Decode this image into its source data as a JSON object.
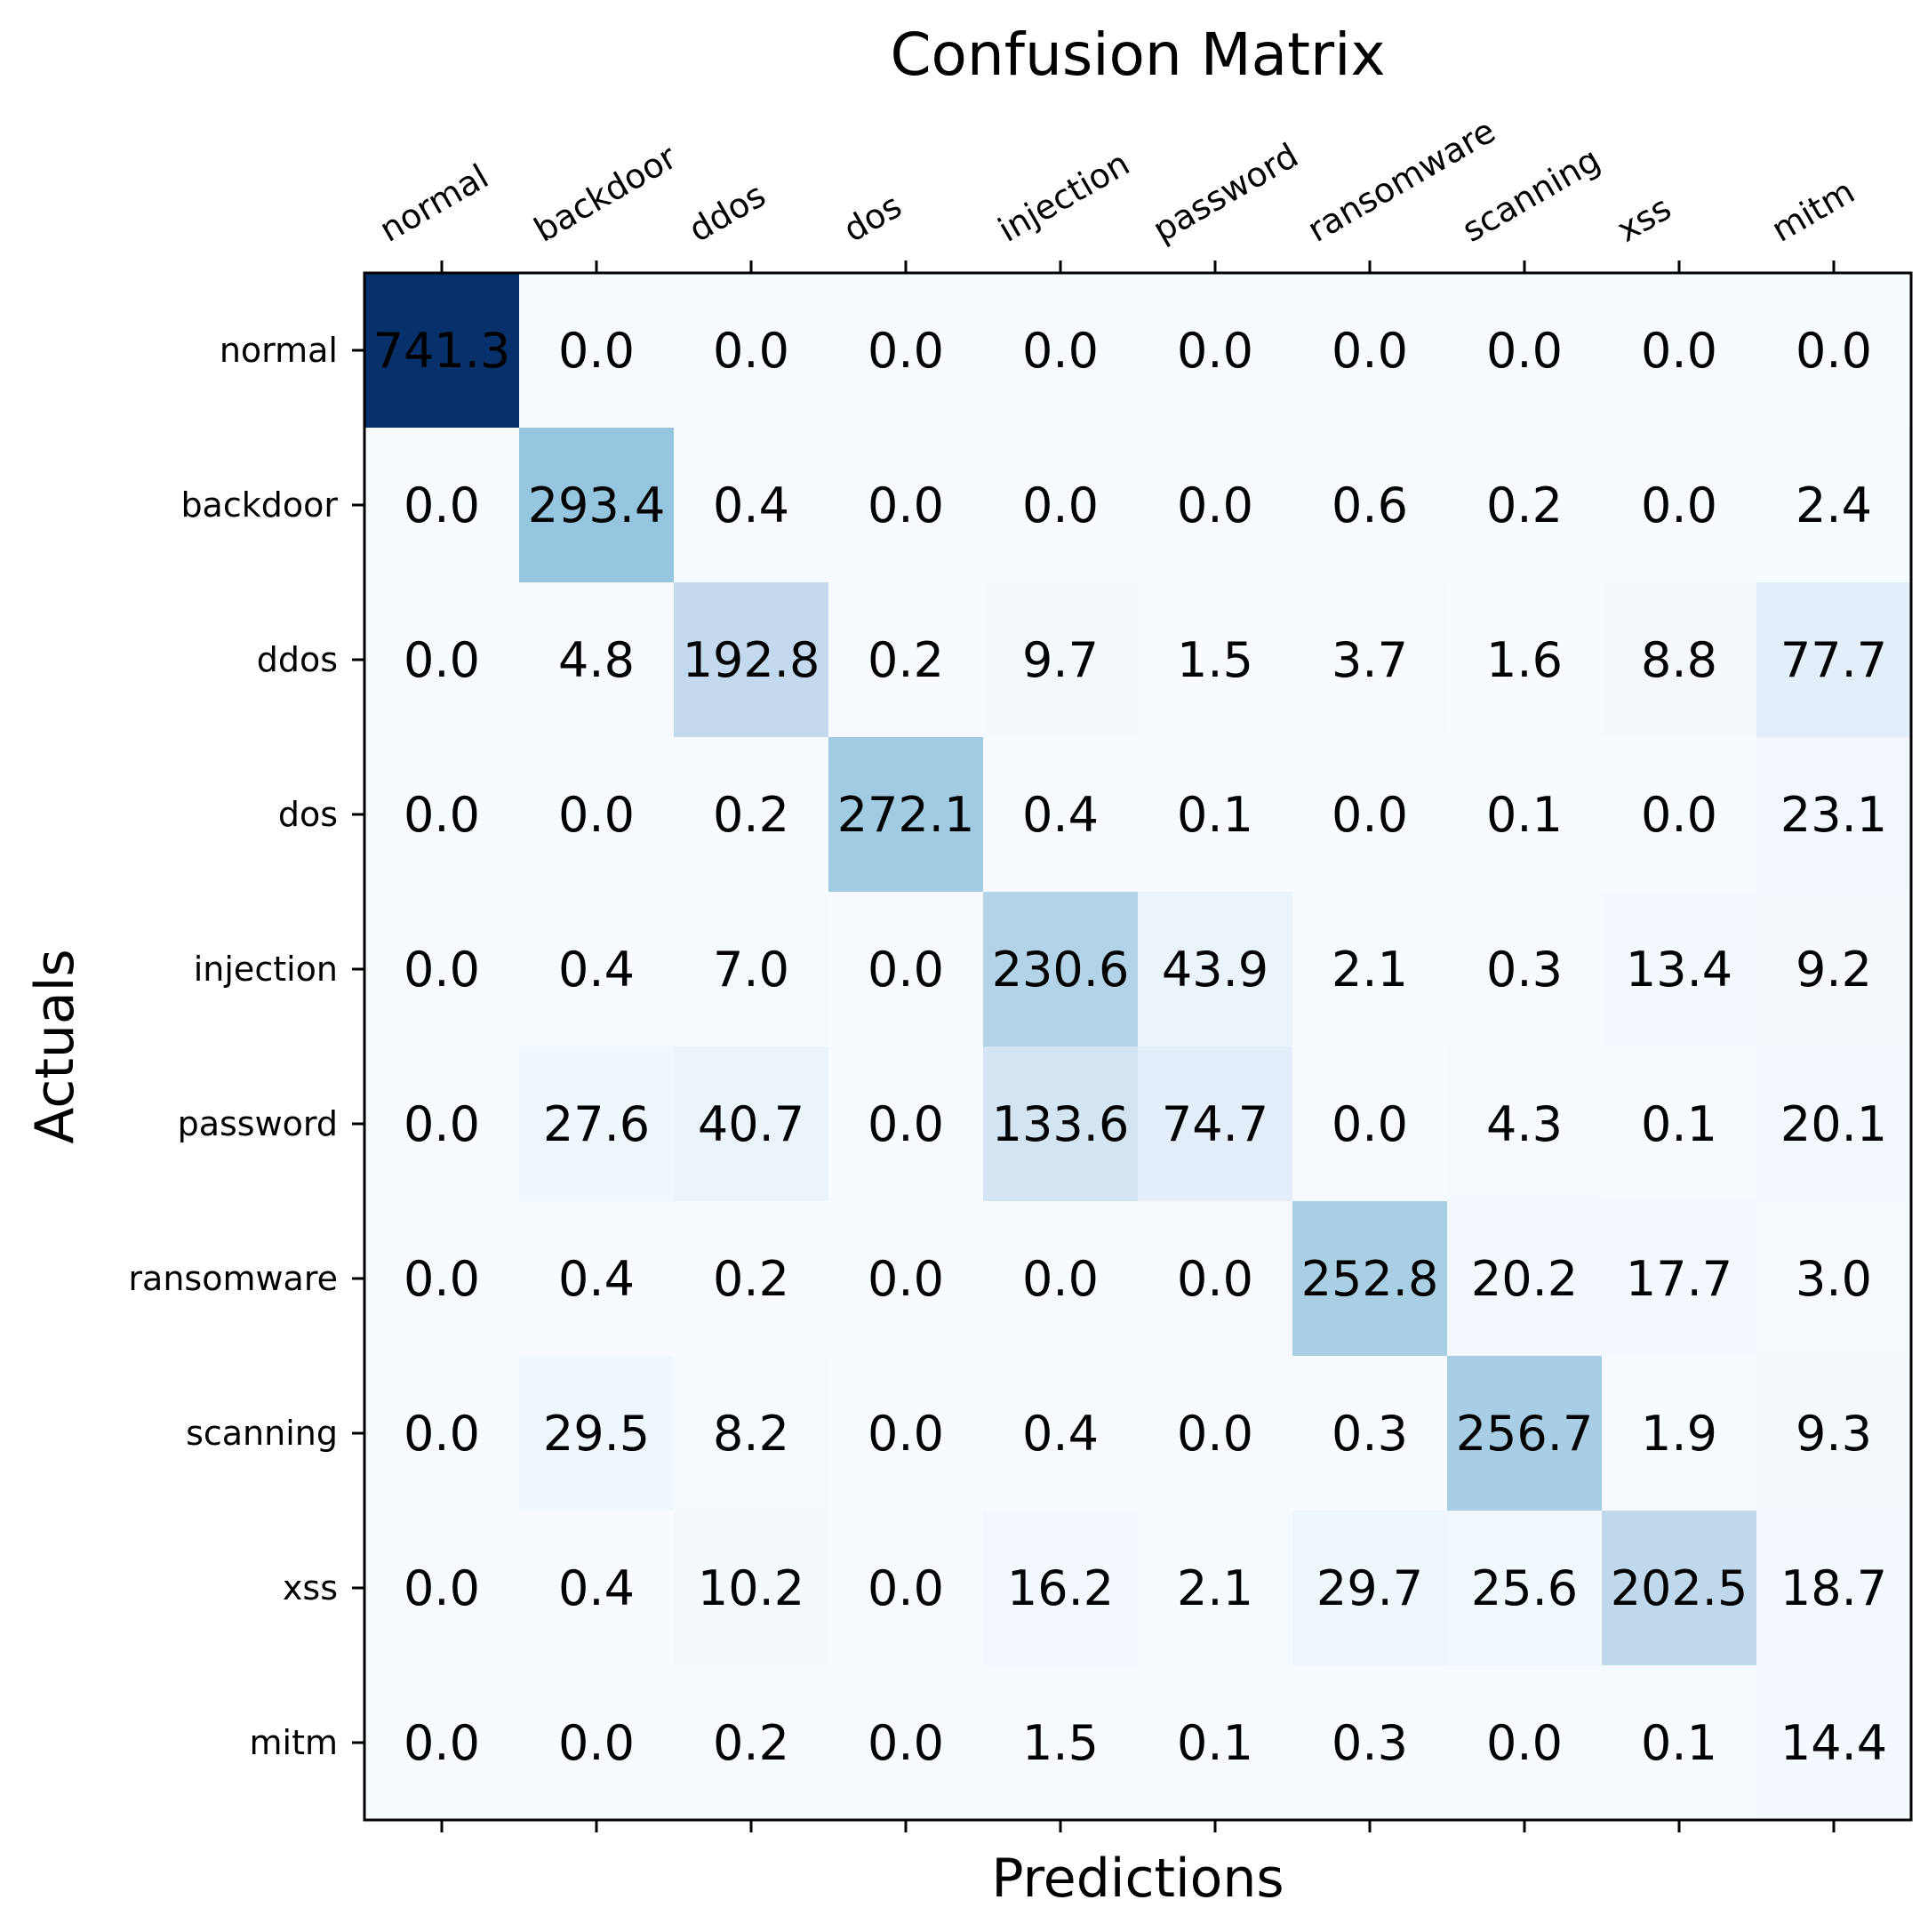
{
  "chart_data": {
    "type": "heatmap",
    "title": "Confusion Matrix",
    "xlabel": "Predictions",
    "ylabel": "Actuals",
    "x_categories": [
      "normal",
      "backdoor",
      "ddos",
      "dos",
      "injection",
      "password",
      "ransomware",
      "scanning",
      "xss",
      "mitm"
    ],
    "y_categories": [
      "normal",
      "backdoor",
      "ddos",
      "dos",
      "injection",
      "password",
      "ransomware",
      "scanning",
      "xss",
      "mitm"
    ],
    "values": [
      [
        741.3,
        0.0,
        0.0,
        0.0,
        0.0,
        0.0,
        0.0,
        0.0,
        0.0,
        0.0
      ],
      [
        0.0,
        293.4,
        0.4,
        0.0,
        0.0,
        0.0,
        0.6,
        0.2,
        0.0,
        2.4
      ],
      [
        0.0,
        4.8,
        192.8,
        0.2,
        9.7,
        1.5,
        3.7,
        1.6,
        8.8,
        77.7
      ],
      [
        0.0,
        0.0,
        0.2,
        272.1,
        0.4,
        0.1,
        0.0,
        0.1,
        0.0,
        23.1
      ],
      [
        0.0,
        0.4,
        7.0,
        0.0,
        230.6,
        43.9,
        2.1,
        0.3,
        13.4,
        9.2
      ],
      [
        0.0,
        27.6,
        40.7,
        0.0,
        133.6,
        74.7,
        0.0,
        4.3,
        0.1,
        20.1
      ],
      [
        0.0,
        0.4,
        0.2,
        0.0,
        0.0,
        0.0,
        252.8,
        20.2,
        17.7,
        3.0
      ],
      [
        0.0,
        29.5,
        8.2,
        0.0,
        0.4,
        0.0,
        0.3,
        256.7,
        1.9,
        9.3
      ],
      [
        0.0,
        0.4,
        10.2,
        0.0,
        16.2,
        2.1,
        29.7,
        25.6,
        202.5,
        18.7
      ],
      [
        0.0,
        0.0,
        0.2,
        0.0,
        1.5,
        0.1,
        0.3,
        0.0,
        0.1,
        14.4
      ]
    ],
    "colormap": "Blues",
    "colormap_stops": [
      "#f7fbff",
      "#deebf7",
      "#c6dbef",
      "#9ecae1",
      "#6baed6",
      "#4292c6",
      "#2171b5",
      "#08519c",
      "#08306b"
    ],
    "value_range": [
      0,
      741.3
    ],
    "x_ticks_position": "top",
    "grid": false
  }
}
